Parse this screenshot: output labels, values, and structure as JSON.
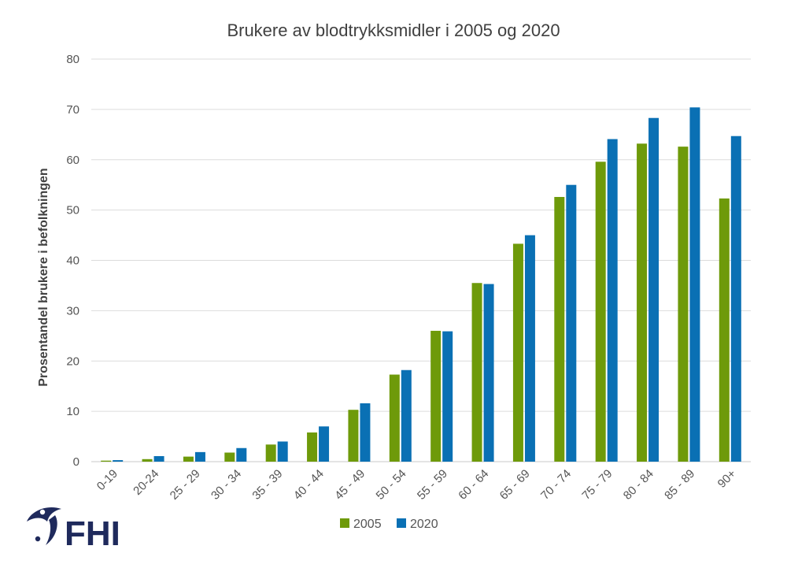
{
  "chart_data": {
    "type": "bar",
    "title": "Brukere av blodtrykksmidler i 2005 og 2020",
    "xlabel": "",
    "ylabel": "Prosentandel brukere i befolkningen",
    "ylim": [
      0,
      80
    ],
    "yticks": [
      0,
      10,
      20,
      30,
      40,
      50,
      60,
      70,
      80
    ],
    "grid": true,
    "legend_position": "bottom",
    "categories": [
      "0-19",
      "20-24",
      "25 - 29",
      "30 - 34",
      "35 - 39",
      "40 - 44",
      "45 - 49",
      "50 - 54",
      "55 - 59",
      "60 - 64",
      "65 - 69",
      "70 - 74",
      "75 - 79",
      "80 - 84",
      "85 - 89",
      "90+"
    ],
    "series": [
      {
        "name": "2005",
        "color": "#6e9a0a",
        "values": [
          0.2,
          0.5,
          1.0,
          1.8,
          3.4,
          5.8,
          10.3,
          17.3,
          26.0,
          35.5,
          43.3,
          52.6,
          59.6,
          63.2,
          62.6,
          52.3
        ]
      },
      {
        "name": "2020",
        "color": "#0a70b4",
        "values": [
          0.3,
          1.1,
          1.9,
          2.7,
          4.0,
          7.0,
          11.6,
          18.2,
          25.9,
          35.3,
          45.0,
          55.0,
          64.1,
          68.3,
          70.4,
          64.7
        ]
      }
    ]
  },
  "logo": {
    "text": "FHI",
    "color": "#1f2a5c"
  }
}
